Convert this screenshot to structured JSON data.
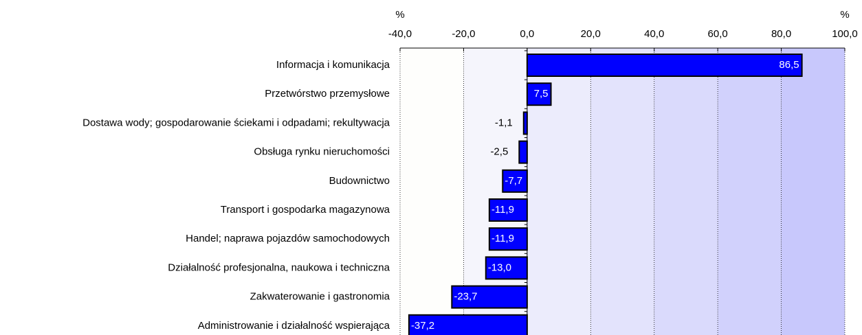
{
  "chart_data": {
    "type": "barh",
    "axis_units": [
      "%",
      "%"
    ],
    "categories": [
      "Informacja i komunikacja",
      "Przetwórstwo przemysłowe",
      "Dostawa wody; gospodarowanie ściekami i odpadami; rekultywacja",
      "Obsługa rynku nieruchomości",
      "Budownictwo",
      "Transport i gospodarka magazynowa",
      "Handel; naprawa pojazdów samochodowych",
      "Działalność profesjonalna, naukowa i techniczna",
      "Zakwaterowanie i gastronomia",
      "Administrowanie i działalność wspierająca"
    ],
    "values": [
      86.5,
      7.5,
      -1.1,
      -2.5,
      -7.7,
      -11.9,
      -11.9,
      -13.0,
      -23.7,
      -37.2
    ],
    "value_labels": [
      "86,5",
      "7,5",
      "-1,1",
      "-2,5",
      "-7,7",
      "-11,9",
      "-11,9",
      "-13,0",
      "-23,7",
      "-37,2"
    ],
    "color": "#0000ff",
    "xlim": [
      -40,
      100
    ],
    "xticks": [
      {
        "value": -40,
        "label": "-40,0"
      },
      {
        "value": -20,
        "label": "-20,0"
      },
      {
        "value": 0,
        "label": "0,0"
      },
      {
        "value": 20,
        "label": "20,0"
      },
      {
        "value": 40,
        "label": "40,0"
      },
      {
        "value": 60,
        "label": "60,0"
      },
      {
        "value": 80,
        "label": "80,0"
      },
      {
        "value": 100,
        "label": "100,0"
      }
    ],
    "grid": true
  }
}
